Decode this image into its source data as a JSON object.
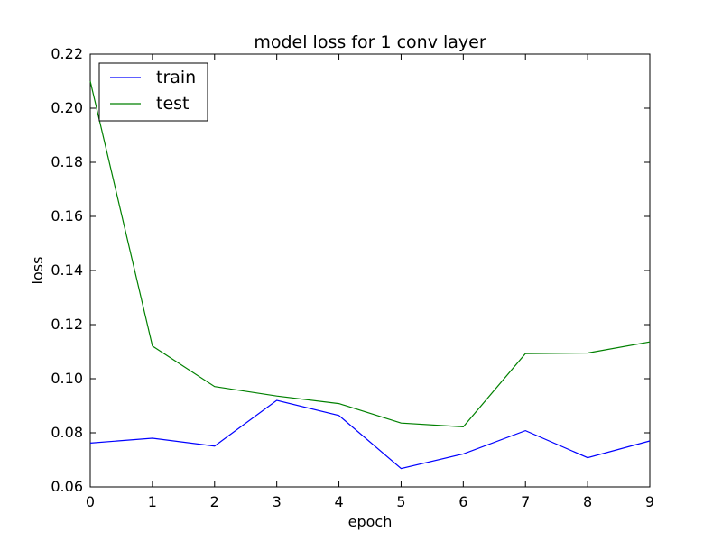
{
  "chart_data": {
    "type": "line",
    "title": "model loss for 1 conv layer",
    "xlabel": "epoch",
    "ylabel": "loss",
    "xlim": [
      0,
      9
    ],
    "ylim": [
      0.06,
      0.22
    ],
    "x": [
      0,
      1,
      2,
      3,
      4,
      5,
      6,
      7,
      8,
      9
    ],
    "xticks": [
      "0",
      "1",
      "2",
      "3",
      "4",
      "5",
      "6",
      "7",
      "8",
      "9"
    ],
    "yticks": [
      "0.06",
      "0.08",
      "0.10",
      "0.12",
      "0.14",
      "0.16",
      "0.18",
      "0.20",
      "0.22"
    ],
    "ytick_values": [
      0.06,
      0.08,
      0.1,
      0.12,
      0.14,
      0.16,
      0.18,
      0.2,
      0.22
    ],
    "grid": false,
    "legend_position": "top-left",
    "series": [
      {
        "name": "train",
        "color": "#0000ff",
        "values": [
          0.0762,
          0.078,
          0.0751,
          0.092,
          0.0864,
          0.0668,
          0.0722,
          0.0808,
          0.0708,
          0.077
        ]
      },
      {
        "name": "test",
        "color": "#008000",
        "values": [
          0.21,
          0.1121,
          0.0971,
          0.0936,
          0.0908,
          0.0836,
          0.0822,
          0.1093,
          0.1095,
          0.1136
        ]
      }
    ]
  }
}
